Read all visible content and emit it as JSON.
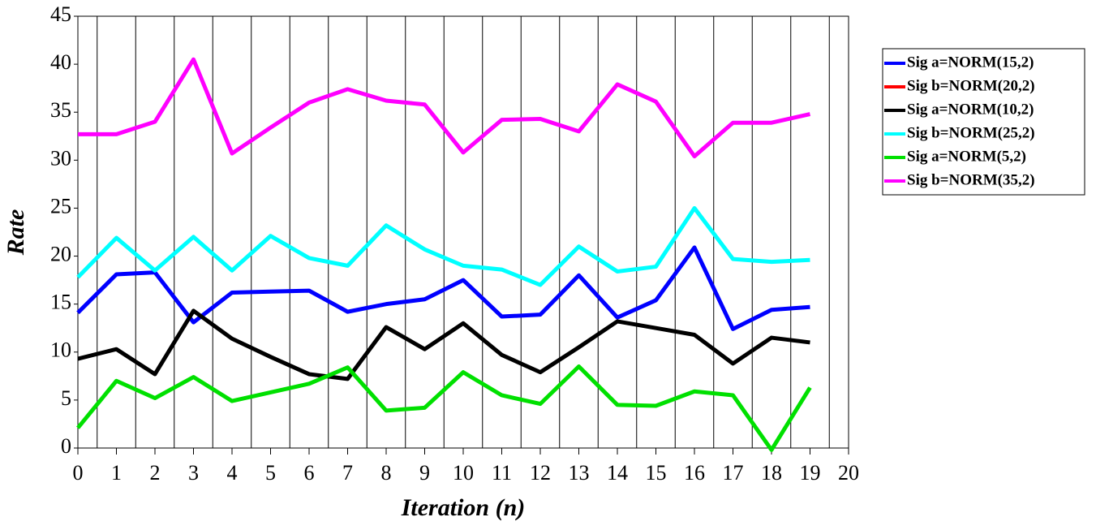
{
  "chart_data": {
    "type": "line",
    "xlabel": "Iteration (n)",
    "ylabel": "Rate",
    "x": [
      0,
      1,
      2,
      3,
      4,
      5,
      6,
      7,
      8,
      9,
      10,
      11,
      12,
      13,
      14,
      15,
      16,
      17,
      18,
      19
    ],
    "series": [
      {
        "name": "Sig a=NORM(15,2)",
        "color": "#0000ff",
        "values": [
          14.1,
          18.1,
          18.3,
          13.1,
          16.2,
          16.3,
          16.4,
          14.2,
          15.0,
          15.5,
          17.5,
          13.7,
          13.9,
          18.0,
          13.6,
          15.4,
          20.9,
          12.4,
          14.4,
          14.7
        ]
      },
      {
        "name": "Sig b=NORM(20,2)",
        "color": "#ff0000",
        "values": [
          null,
          null,
          null,
          null,
          null,
          null,
          null,
          null,
          null,
          null,
          null,
          null,
          null,
          null,
          null,
          null,
          null,
          null,
          null,
          null
        ]
      },
      {
        "name": "Sig a=NORM(10,2)",
        "color": "#000000",
        "values": [
          9.3,
          10.3,
          7.7,
          14.3,
          11.4,
          9.5,
          7.7,
          7.2,
          12.6,
          10.3,
          13.0,
          9.7,
          7.9,
          10.5,
          13.2,
          12.5,
          11.8,
          8.8,
          11.5,
          11.0
        ]
      },
      {
        "name": "Sig b=NORM(25,2)",
        "color": "#00ffff",
        "values": [
          17.8,
          21.9,
          18.5,
          22.0,
          18.5,
          22.1,
          19.8,
          19.0,
          23.2,
          20.7,
          19.0,
          18.6,
          17.0,
          21.0,
          18.4,
          18.9,
          25.0,
          19.7,
          19.4,
          19.6
        ]
      },
      {
        "name": "Sig a=NORM(5,2)",
        "color": "#00e000",
        "values": [
          2.1,
          7.0,
          5.2,
          7.4,
          4.9,
          5.8,
          6.7,
          8.4,
          3.9,
          4.2,
          7.9,
          5.5,
          4.6,
          8.5,
          4.5,
          4.4,
          5.9,
          5.5,
          -0.2,
          6.3
        ]
      },
      {
        "name": "Sig b=NORM(35,2)",
        "color": "#ff00ff",
        "values": [
          32.7,
          32.7,
          34.0,
          40.5,
          30.7,
          33.4,
          36.0,
          37.4,
          36.2,
          35.8,
          30.8,
          34.2,
          34.3,
          33.0,
          37.9,
          36.1,
          30.4,
          33.9,
          33.9,
          34.8
        ]
      }
    ],
    "xlim": [
      0,
      20
    ],
    "xticks": [
      0,
      1,
      2,
      3,
      4,
      5,
      6,
      7,
      8,
      9,
      10,
      11,
      12,
      13,
      14,
      15,
      16,
      17,
      18,
      19,
      20
    ],
    "ylim": [
      0,
      45
    ],
    "yticks": [
      0,
      5,
      10,
      15,
      20,
      25,
      30,
      35,
      40,
      45
    ],
    "grid": true,
    "legend": "right"
  }
}
